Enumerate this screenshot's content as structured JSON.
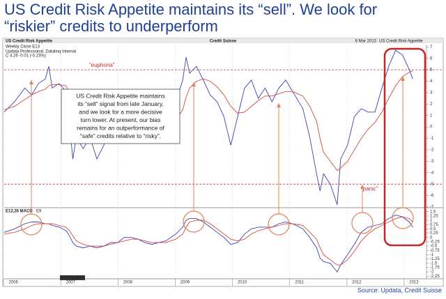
{
  "slide": {
    "title_lines": [
      "US Credit Risk Appetite maintains its “sell”.  We look for",
      "“riskier” credits to underperform"
    ],
    "source": "Source: Updata, Credit Suisse"
  },
  "chart_data": [
    {
      "type": "line",
      "title": "US Credit Risk Appetite",
      "brand": "Credit Suisse",
      "date": "6 Mar 2013",
      "title_right": "US Credit Risk Appetite",
      "subtitle": "Weekly Close E13",
      "info": [
        "Updata Professional, Datalinq Internal",
        "C 4.26 -0.01 (-0.23%)"
      ],
      "x": [
        2005.84,
        2006.02,
        2006.2,
        2006.32,
        2006.44,
        2006.56,
        2006.62,
        2006.68,
        2006.8,
        2006.92,
        2006.98,
        2007.04,
        2007.1,
        2007.22,
        2007.34,
        2007.46,
        2007.58,
        2007.7,
        2007.82,
        2007.94,
        2008.06,
        2008.18,
        2008.3,
        2008.42,
        2008.54,
        2008.66,
        2008.84,
        2008.96,
        2009.02,
        2009.08,
        2009.2,
        2009.32,
        2009.44,
        2009.56,
        2009.68,
        2009.8,
        2009.92,
        2010.04,
        2010.16,
        2010.28,
        2010.4,
        2010.52,
        2010.64,
        2010.76,
        2010.88,
        2011.06,
        2011.18,
        2011.3,
        2011.36,
        2011.42,
        2011.54,
        2011.66,
        2011.72,
        2011.84,
        2011.96,
        2012.08,
        2012.2,
        2012.32,
        2012.44,
        2012.56,
        2012.68,
        2012.8,
        2012.92,
        2012.98
      ],
      "series": [
        {
          "color": "#3a3fb5",
          "values": [
            1.3,
            2.2,
            3.4,
            2.8,
            3.8,
            4.2,
            5.3,
            3.4,
            3.8,
            3.1,
            0.3,
            -2.8,
            -0.9,
            -1.9,
            -0.9,
            -2.8,
            -1.6,
            0,
            -1.3,
            1.6,
            0.6,
            -0.6,
            -1.3,
            -0.9,
            0.9,
            0.6,
            2.2,
            4.1,
            6.1,
            4.7,
            5.3,
            4.1,
            2.8,
            2.2,
            0.9,
            -1.6,
            0.9,
            3.4,
            4.1,
            2.5,
            3.4,
            2.2,
            3.4,
            4.1,
            3.1,
            1.6,
            -0.9,
            -4.1,
            -5.6,
            -4.1,
            -5,
            -6.8,
            -2.8,
            -1.6,
            0.9,
            1.6,
            1.3,
            1.3,
            3.4,
            5.3,
            6.7,
            6.3,
            5,
            4.2
          ]
        },
        {
          "color": "#d8473a",
          "values": [
            1.5,
            1.8,
            2.4,
            2.8,
            3.1,
            3.3,
            3.6,
            3.7,
            3.7,
            3.6,
            3.0,
            2.0,
            1.0,
            0.3,
            -0.3,
            -0.8,
            -1.2,
            -1.2,
            -1.1,
            -0.7,
            -0.4,
            -0.3,
            -0.4,
            -0.5,
            -0.3,
            0,
            0.6,
            1.5,
            2.6,
            3.4,
            4.0,
            4.2,
            4.0,
            3.5,
            2.8,
            1.8,
            1.2,
            1.3,
            1.8,
            2.3,
            2.7,
            2.7,
            2.9,
            3.1,
            3.1,
            2.7,
            1.8,
            0.5,
            -1.0,
            -2.2,
            -3.0,
            -3.8,
            -3.6,
            -3.0,
            -2.0,
            -1.0,
            -0.2,
            0.4,
            1.3,
            2.5,
            3.6,
            4.4,
            4.8,
            4.9
          ]
        }
      ],
      "xlim": [
        2005.84,
        2013.22
      ],
      "xticks": [
        2006,
        2007,
        2008,
        2009,
        2010,
        2011,
        2012,
        2013
      ],
      "ylim": [
        -7.06,
        7.2
      ],
      "yticks": [
        7,
        6,
        5,
        4,
        3,
        2,
        1,
        0,
        -1,
        -2,
        -3,
        -4,
        -5,
        -6,
        -7
      ],
      "hlines": [
        {
          "value": 5,
          "label": "“euphoria”"
        },
        {
          "value": -5,
          "label": "“panic”"
        }
      ],
      "annotation": [
        "US Credit Risk Appetite maintains",
        "its “sell” signal from late January,",
        "and we look for a more decisive",
        "turn lower.  At present, our bias",
        "remains for an outperformance of",
        "“safe” credits relative to “risky”."
      ]
    },
    {
      "type": "line",
      "title": "E12,26 MACD",
      "signal_label": "E9",
      "x_marker_label": "19 Nov 2007",
      "x": [
        2005.84,
        2006.02,
        2006.2,
        2006.32,
        2006.44,
        2006.56,
        2006.62,
        2006.68,
        2006.8,
        2006.92,
        2006.98,
        2007.04,
        2007.1,
        2007.22,
        2007.34,
        2007.46,
        2007.58,
        2007.7,
        2007.82,
        2007.94,
        2008.06,
        2008.18,
        2008.3,
        2008.42,
        2008.54,
        2008.66,
        2008.84,
        2008.96,
        2009.02,
        2009.08,
        2009.2,
        2009.32,
        2009.44,
        2009.56,
        2009.68,
        2009.8,
        2009.92,
        2010.04,
        2010.16,
        2010.28,
        2010.4,
        2010.52,
        2010.64,
        2010.76,
        2010.88,
        2011.06,
        2011.18,
        2011.3,
        2011.36,
        2011.42,
        2011.54,
        2011.66,
        2011.72,
        2011.84,
        2011.96,
        2012.08,
        2012.2,
        2012.32,
        2012.44,
        2012.56,
        2012.68,
        2012.8,
        2012.92,
        2012.98
      ],
      "series": [
        {
          "color": "#3a3fb5",
          "values": [
            0.3,
            0.5,
            0.8,
            0.9,
            0.9,
            0.8,
            0.8,
            0.7,
            0.6,
            0.4,
            0.1,
            -0.3,
            -0.5,
            -0.6,
            -0.5,
            -0.6,
            -0.5,
            -0.3,
            -0.3,
            0,
            0,
            -0.1,
            -0.3,
            -0.4,
            -0.3,
            -0.2,
            0.2,
            0.6,
            1.0,
            1.1,
            1.1,
            0.9,
            0.6,
            0.3,
            0,
            -0.4,
            -0.3,
            0.2,
            0.5,
            0.6,
            0.6,
            0.6,
            0.8,
            0.9,
            0.8,
            0.5,
            0,
            -0.6,
            -1.2,
            -1.4,
            -1.5,
            -2.0,
            -1.6,
            -1.0,
            -0.4,
            0.3,
            0.6,
            0.7,
            0.8,
            1.1,
            1.3,
            1.2,
            0.9,
            0.6
          ]
        },
        {
          "color": "#d8473a",
          "values": [
            0.2,
            0.3,
            0.5,
            0.7,
            0.8,
            0.8,
            0.8,
            0.8,
            0.7,
            0.6,
            0.4,
            0.1,
            -0.2,
            -0.4,
            -0.5,
            -0.5,
            -0.5,
            -0.4,
            -0.3,
            -0.2,
            -0.1,
            -0.1,
            -0.2,
            -0.3,
            -0.3,
            -0.3,
            -0.1,
            0.2,
            0.6,
            0.9,
            1.0,
            1.0,
            0.8,
            0.5,
            0.2,
            -0.1,
            -0.2,
            -0.1,
            0.2,
            0.4,
            0.5,
            0.6,
            0.7,
            0.8,
            0.8,
            0.7,
            0.3,
            -0.1,
            -0.6,
            -1.0,
            -1.3,
            -1.6,
            -1.6,
            -1.3,
            -0.8,
            -0.2,
            0.2,
            0.5,
            0.7,
            0.9,
            1.1,
            1.2,
            1.1,
            0.9
          ]
        }
      ],
      "xlim": [
        2005.84,
        2013.22
      ],
      "xticks": [
        2006,
        2007,
        2008,
        2009,
        2010,
        2011,
        2012,
        2013
      ],
      "ylim": [
        -2.4,
        1.65
      ],
      "yticks": [
        1.5,
        1.25,
        1,
        0.75,
        0.5,
        0.25,
        0,
        -0.25,
        -0.5,
        -0.75,
        -1,
        -1.25,
        -1.5,
        -1.75,
        -2,
        -2.25
      ]
    }
  ]
}
